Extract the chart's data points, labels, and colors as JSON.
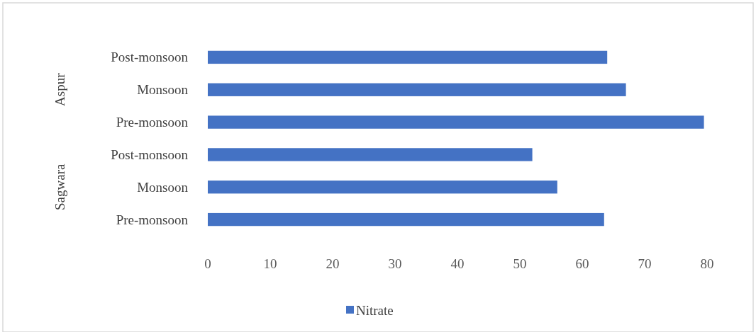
{
  "chart_data": {
    "type": "bar",
    "orientation": "horizontal",
    "categories": [
      "Post-monsoon",
      "Monsoon",
      "Pre-monsoon",
      "Post-monsoon",
      "Monsoon",
      "Pre-monsoon"
    ],
    "series": [
      {
        "name": "Nitrate",
        "color": "#4472c4",
        "values": [
          64,
          67,
          79.5,
          52,
          56,
          63.5
        ]
      }
    ],
    "xlim": [
      0,
      80
    ],
    "xticks": [
      0,
      10,
      20,
      30,
      40,
      50,
      60,
      70,
      80
    ],
    "annotations": [
      "Aspur",
      "Sagwara"
    ],
    "grid": false,
    "legend": "bottom"
  }
}
